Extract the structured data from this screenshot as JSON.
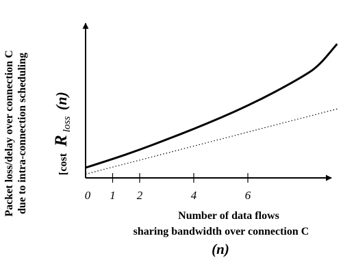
{
  "chart_data": {
    "type": "line",
    "ylabel_line1": "Packet loss/delay  over connection  C",
    "ylabel_line2": "due to intra-connection scheduling",
    "ylabel_prefix": "[cost",
    "ylabel_symbol": "R",
    "ylabel_subscript": "loss",
    "ylabel_arg": "(n)",
    "xlabel_line1": "Number of data flows",
    "xlabel_line2": "sharing bandwidth over connection   C",
    "xlabel_arg": "(n)",
    "x_ticks": [
      {
        "value": 0,
        "label": "0"
      },
      {
        "value": 1,
        "label": "1"
      },
      {
        "value": 2,
        "label": "2"
      },
      {
        "value": 4,
        "label": "4"
      },
      {
        "value": 6,
        "label": "6"
      }
    ],
    "xlim": [
      0,
      9.4
    ],
    "ylim": [
      0,
      10
    ],
    "series": [
      {
        "style": "solid",
        "x": [
          0,
          1,
          2,
          3,
          4,
          5,
          6,
          7,
          8,
          8.6,
          9.3
        ],
        "y": [
          0.68,
          1.25,
          1.87,
          2.55,
          3.25,
          4.0,
          4.8,
          5.7,
          6.7,
          7.4,
          8.9
        ]
      },
      {
        "style": "dotted",
        "x": [
          0,
          9.3
        ],
        "y": [
          0.25,
          4.58
        ]
      }
    ]
  }
}
